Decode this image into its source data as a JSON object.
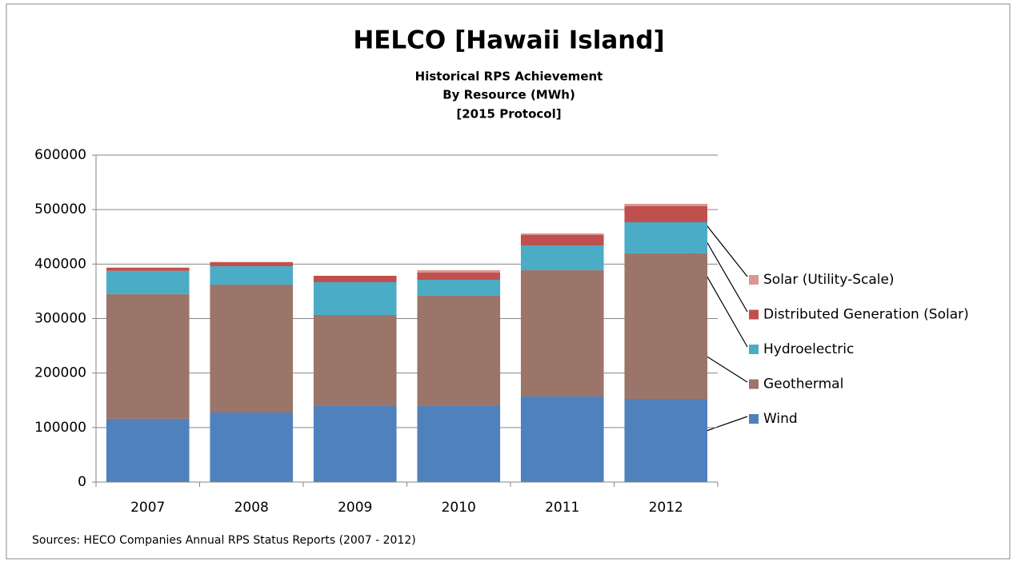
{
  "chart_data": {
    "type": "bar",
    "stacked": true,
    "title": "HELCO [Hawaii Island]",
    "subtitle": [
      "Historical RPS Achievement",
      "By Resource (MWh)",
      "[2015 Protocol]"
    ],
    "source": "Sources: HECO Companies Annual RPS Status Reports (2007 - 2012)",
    "categories": [
      "2007",
      "2008",
      "2009",
      "2010",
      "2011",
      "2012"
    ],
    "series": [
      {
        "name": "Wind",
        "color": "#4f81bd",
        "values": [
          116000,
          127600,
          139400,
          139400,
          157000,
          152600
        ]
      },
      {
        "name": "Geothermal",
        "color": "#9b7569",
        "values": [
          229000,
          234700,
          167200,
          202400,
          231700,
          266900
        ]
      },
      {
        "name": "Hydroelectric",
        "color": "#4bacc6",
        "values": [
          42600,
          33700,
          60100,
          29300,
          45500,
          57300
        ]
      },
      {
        "name": "Distributed Generation (Solar)",
        "color": "#c0504d",
        "values": [
          5700,
          7400,
          11800,
          13200,
          19100,
          29300
        ]
      },
      {
        "name": "Solar (Utility-Scale)",
        "color": "#d99694",
        "values": [
          500,
          500,
          0,
          4400,
          2900,
          4400
        ]
      }
    ],
    "ylim": [
      0,
      600000
    ],
    "yticks": [
      0,
      100000,
      200000,
      300000,
      400000,
      500000,
      600000
    ],
    "grid": true
  }
}
